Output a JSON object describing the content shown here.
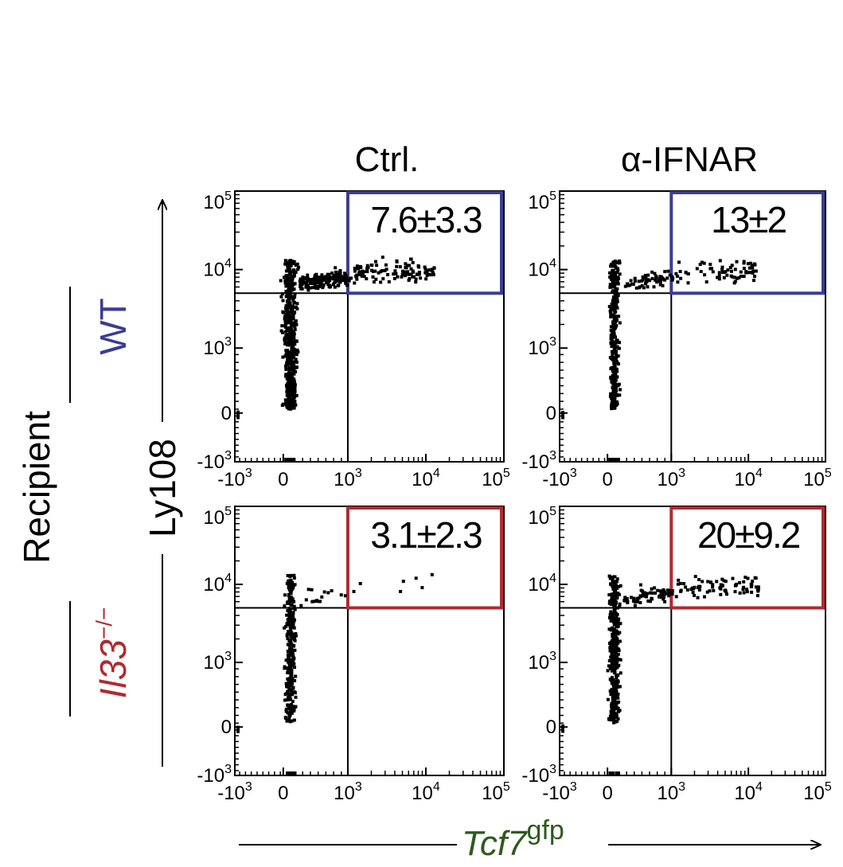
{
  "figure": {
    "columns": [
      "Ctrl.",
      "α-IFNAR"
    ],
    "row_group_label": "Recipient",
    "rows": [
      {
        "label": "WT",
        "color": "#3a3d91"
      },
      {
        "label_main": "Il33",
        "label_sup": "−/−",
        "color": "#b02a30"
      }
    ],
    "y_axis_label": "Ly108",
    "x_axis_label_main": "Tcf7",
    "x_axis_label_sup": "gfp",
    "x_axis_label_color": "#2e5a1c",
    "tick_labels": [
      "-10",
      "0",
      "10",
      "10",
      "10"
    ],
    "tick_exponents": [
      "3",
      "",
      "3",
      "4",
      "5"
    ]
  },
  "chart_data": [
    {
      "type": "scatter",
      "row": "WT",
      "column": "Ctrl.",
      "gate_value": "7.6±3.3",
      "gate_color": "#3a3d91",
      "x_ticks": [
        -1000,
        0,
        1000,
        10000,
        100000
      ],
      "y_ticks": [
        -1000,
        0,
        1000,
        10000,
        100000
      ],
      "quadrant_lines": {
        "x": 1000,
        "y": 5000
      }
    },
    {
      "type": "scatter",
      "row": "WT",
      "column": "α-IFNAR",
      "gate_value": "13±2",
      "gate_color": "#3a3d91",
      "x_ticks": [
        -1000,
        0,
        1000,
        10000,
        100000
      ],
      "y_ticks": [
        -1000,
        0,
        1000,
        10000,
        100000
      ],
      "quadrant_lines": {
        "x": 1000,
        "y": 5000
      }
    },
    {
      "type": "scatter",
      "row": "Il33−/−",
      "column": "Ctrl.",
      "gate_value": "3.1±2.3",
      "gate_color": "#b02a30",
      "x_ticks": [
        -1000,
        0,
        1000,
        10000,
        100000
      ],
      "y_ticks": [
        -1000,
        0,
        1000,
        10000,
        100000
      ],
      "quadrant_lines": {
        "x": 1000,
        "y": 5000
      }
    },
    {
      "type": "scatter",
      "row": "Il33−/−",
      "column": "α-IFNAR",
      "gate_value": "20±9.2",
      "gate_color": "#b02a30",
      "x_ticks": [
        -1000,
        0,
        1000,
        10000,
        100000
      ],
      "y_ticks": [
        -1000,
        0,
        1000,
        10000,
        100000
      ],
      "quadrant_lines": {
        "x": 1000,
        "y": 5000
      }
    }
  ]
}
